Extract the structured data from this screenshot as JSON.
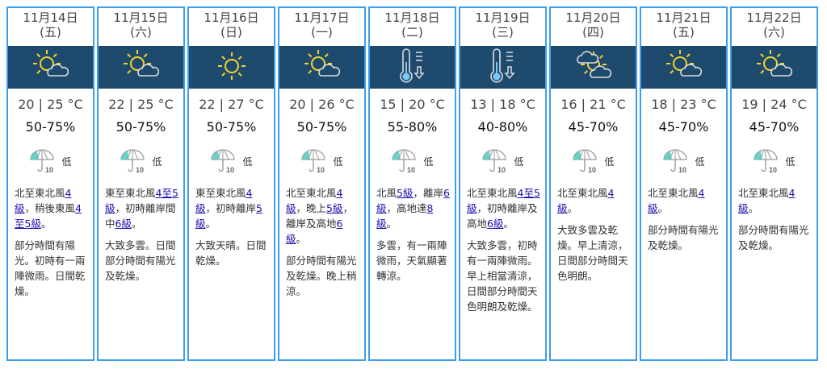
{
  "colors": {
    "border": "#3d9ef0",
    "icon_band": "#1e4a6e",
    "link": "#1a0dab"
  },
  "days": [
    {
      "date": "11月14日",
      "weekday": "(五)",
      "icon": "sunny-periods-cloud-icon",
      "temp": "20 | 25 °C",
      "rh": "50-75%",
      "psr": "低",
      "wind": [
        {
          "t": "北至東北風"
        },
        {
          "t": "4級",
          "link": true
        },
        {
          "t": "，稍後東風"
        },
        {
          "t": "4至5級",
          "link": true
        },
        {
          "t": "。"
        }
      ],
      "weather": "部分時間有陽光。初時有一兩陣微雨。日間乾燥。"
    },
    {
      "date": "11月15日",
      "weekday": "(六)",
      "icon": "sunny-periods-cloud-icon",
      "temp": "22 | 25 °C",
      "rh": "50-75%",
      "psr": "低",
      "wind": [
        {
          "t": "東至東北風"
        },
        {
          "t": "4至5級",
          "link": true
        },
        {
          "t": "，初時離岸間中"
        },
        {
          "t": "6級",
          "link": true
        },
        {
          "t": "。"
        }
      ],
      "weather": "大致多雲。日間部分時間有陽光及乾燥。"
    },
    {
      "date": "11月16日",
      "weekday": "(日)",
      "icon": "sunny-icon",
      "temp": "22 | 27 °C",
      "rh": "50-75%",
      "psr": "低",
      "wind": [
        {
          "t": "東至東北風"
        },
        {
          "t": "4級",
          "link": true
        },
        {
          "t": "，初時離岸"
        },
        {
          "t": "5級",
          "link": true
        },
        {
          "t": "。"
        }
      ],
      "weather": "大致天晴。日間乾燥。"
    },
    {
      "date": "11月17日",
      "weekday": "(一)",
      "icon": "sunny-periods-cloud-icon",
      "temp": "20 | 26 °C",
      "rh": "50-75%",
      "psr": "低",
      "wind": [
        {
          "t": "北至東北風"
        },
        {
          "t": "4級",
          "link": true
        },
        {
          "t": "，晚上"
        },
        {
          "t": "5級",
          "link": true
        },
        {
          "t": "，離岸及高地"
        },
        {
          "t": "6級",
          "link": true
        },
        {
          "t": "。"
        }
      ],
      "weather": "部分時間有陽光及乾燥。晚上稍涼。"
    },
    {
      "date": "11月18日",
      "weekday": "(二)",
      "icon": "cool-thermometer-icon",
      "temp": "15 | 20 °C",
      "rh": "55-80%",
      "psr": "低",
      "wind": [
        {
          "t": "北風"
        },
        {
          "t": "5級",
          "link": true
        },
        {
          "t": "，離岸"
        },
        {
          "t": "6級",
          "link": true
        },
        {
          "t": "，高地達"
        },
        {
          "t": "8級",
          "link": true
        },
        {
          "t": "。"
        }
      ],
      "weather": "多雲，有一兩陣微雨，天氣顯著轉涼。"
    },
    {
      "date": "11月19日",
      "weekday": "(三)",
      "icon": "cool-thermometer-icon",
      "temp": "13 | 18 °C",
      "rh": "40-80%",
      "psr": "低",
      "wind": [
        {
          "t": "北至東北風"
        },
        {
          "t": "4至5級",
          "link": true
        },
        {
          "t": "，初時離岸及高地"
        },
        {
          "t": "6級",
          "link": true
        },
        {
          "t": "。"
        }
      ],
      "weather": "大致多雲，初時有一兩陣微雨。早上相當清涼，日間部分時間天色明朗及乾燥。"
    },
    {
      "date": "11月20日",
      "weekday": "(四)",
      "icon": "mainly-cloudy-sun-icon",
      "temp": "16 | 21 °C",
      "rh": "45-70%",
      "psr": "低",
      "wind": [
        {
          "t": "北至東北風"
        },
        {
          "t": "4級",
          "link": true
        },
        {
          "t": "。"
        }
      ],
      "weather": "大致多雲及乾燥。早上清涼，日間部分時間天色明朗。"
    },
    {
      "date": "11月21日",
      "weekday": "(五)",
      "icon": "sunny-periods-cloud-icon",
      "temp": "18 | 23 °C",
      "rh": "45-70%",
      "psr": "低",
      "wind": [
        {
          "t": "北至東北風"
        },
        {
          "t": "4級",
          "link": true
        },
        {
          "t": "。"
        }
      ],
      "weather": "部分時間有陽光及乾燥。"
    },
    {
      "date": "11月22日",
      "weekday": "(六)",
      "icon": "sunny-periods-cloud-icon",
      "temp": "19 | 24 °C",
      "rh": "45-70%",
      "psr": "低",
      "wind": [
        {
          "t": "北至東北風"
        },
        {
          "t": "4級",
          "link": true
        },
        {
          "t": "。"
        }
      ],
      "weather": "部分時間有陽光及乾燥。"
    }
  ]
}
